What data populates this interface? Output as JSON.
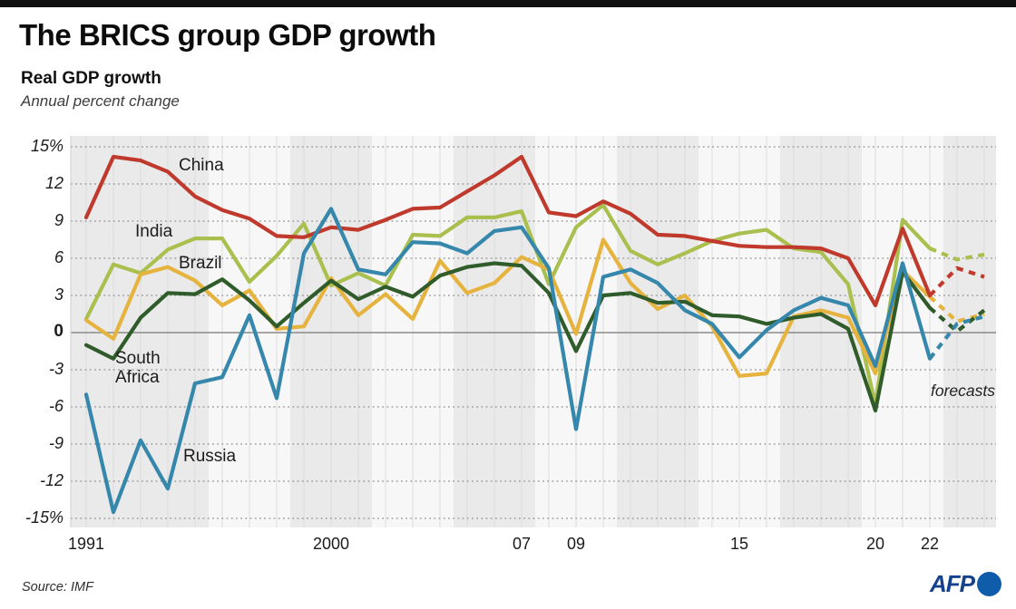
{
  "header": {
    "title": "The BRICS group GDP growth",
    "subtitle": "Real GDP growth",
    "subtitle2": "Annual percent change"
  },
  "annotations": {
    "forecasts": "forecasts"
  },
  "footer": {
    "source": "Source: IMF",
    "logo_text": "AFP"
  },
  "colors": {
    "band_gray": "#eaeaea",
    "band_white": "#f7f7f7",
    "year_grid": "#dcdcdc",
    "grid": "#8f8f8f",
    "zero_line": "#8a8a8a",
    "axis": "#cfcfcf",
    "afp_blue_text": "#16418c",
    "afp_blue_circle": "#0f5cab"
  },
  "chart_data": {
    "type": "line",
    "title": "The BRICS group GDP growth",
    "ylabel": "Real GDP growth, annual percent change",
    "ylim": [
      -15,
      15
    ],
    "grid": "dashed horizontal every 3, faint vertical yearly",
    "forecast_start_year": 2022,
    "x": [
      1991,
      1992,
      1993,
      1994,
      1995,
      1996,
      1997,
      1998,
      1999,
      2000,
      2001,
      2002,
      2003,
      2004,
      2005,
      2006,
      2007,
      2008,
      2009,
      2010,
      2011,
      2012,
      2013,
      2014,
      2015,
      2016,
      2017,
      2018,
      2019,
      2020,
      2021,
      2022,
      2023,
      2024
    ],
    "x_tick_labels": [
      {
        "year": 1991,
        "label": "1991"
      },
      {
        "year": 2000,
        "label": "2000"
      },
      {
        "year": 2007,
        "label": "07"
      },
      {
        "year": 2009,
        "label": "09"
      },
      {
        "year": 2015,
        "label": "15"
      },
      {
        "year": 2020,
        "label": "20"
      },
      {
        "year": 2022,
        "label": "22"
      }
    ],
    "y_ticks": [
      {
        "value": 15,
        "label": "15%"
      },
      {
        "value": 12,
        "label": "12"
      },
      {
        "value": 9,
        "label": "9"
      },
      {
        "value": 6,
        "label": "6"
      },
      {
        "value": 3,
        "label": "3"
      },
      {
        "value": 0,
        "label": "0"
      },
      {
        "value": -3,
        "label": "-3"
      },
      {
        "value": -6,
        "label": "-6"
      },
      {
        "value": -9,
        "label": "-9"
      },
      {
        "value": -12,
        "label": "-12"
      },
      {
        "value": -15,
        "label": "-15%"
      }
    ],
    "series": [
      {
        "name": "India",
        "color": "#a9bf4e",
        "values": [
          1.1,
          5.5,
          4.8,
          6.7,
          7.6,
          7.6,
          4.1,
          6.2,
          8.8,
          3.8,
          4.8,
          3.8,
          7.9,
          7.8,
          9.3,
          9.3,
          9.8,
          3.9,
          8.5,
          10.3,
          6.6,
          5.5,
          6.4,
          7.4,
          8.0,
          8.3,
          6.8,
          6.5,
          3.9,
          -5.8,
          9.1,
          6.8,
          5.9,
          6.3
        ]
      },
      {
        "name": "Brazil",
        "color": "#e5b33e",
        "values": [
          1.0,
          -0.5,
          4.7,
          5.3,
          4.2,
          2.2,
          3.4,
          0.3,
          0.5,
          4.4,
          1.4,
          3.1,
          1.1,
          5.8,
          3.2,
          4.0,
          6.1,
          5.1,
          -0.1,
          7.5,
          4.0,
          1.9,
          3.0,
          0.5,
          -3.5,
          -3.3,
          1.3,
          1.8,
          1.2,
          -3.3,
          5.0,
          2.9,
          0.9,
          1.5
        ]
      },
      {
        "name": "South Africa",
        "color": "#305c2b",
        "values": [
          -1.0,
          -2.1,
          1.2,
          3.2,
          3.1,
          4.3,
          2.6,
          0.5,
          2.4,
          4.2,
          2.7,
          3.7,
          2.9,
          4.6,
          5.3,
          5.6,
          5.4,
          3.2,
          -1.5,
          3.0,
          3.2,
          2.4,
          2.5,
          1.4,
          1.3,
          0.7,
          1.2,
          1.5,
          0.3,
          -6.3,
          4.9,
          2.0,
          0.1,
          1.8
        ]
      },
      {
        "name": "China",
        "color": "#bf3a2d",
        "values": [
          9.3,
          14.2,
          13.9,
          13.0,
          11.0,
          9.9,
          9.2,
          7.8,
          7.7,
          8.5,
          8.3,
          9.1,
          10.0,
          10.1,
          11.4,
          12.7,
          14.2,
          9.7,
          9.4,
          10.6,
          9.6,
          7.9,
          7.8,
          7.4,
          7.0,
          6.9,
          6.9,
          6.8,
          6.0,
          2.2,
          8.4,
          3.0,
          5.2,
          4.5
        ]
      },
      {
        "name": "Russia",
        "color": "#3587ab",
        "values": [
          -5.0,
          -14.5,
          -8.7,
          -12.6,
          -4.1,
          -3.6,
          1.4,
          -5.3,
          6.4,
          10.0,
          5.1,
          4.7,
          7.3,
          7.2,
          6.4,
          8.2,
          8.5,
          5.2,
          -7.8,
          4.5,
          5.1,
          4.0,
          1.8,
          0.7,
          -2.0,
          0.2,
          1.8,
          2.8,
          2.2,
          -2.7,
          5.6,
          -2.1,
          0.7,
          1.3
        ]
      }
    ]
  }
}
